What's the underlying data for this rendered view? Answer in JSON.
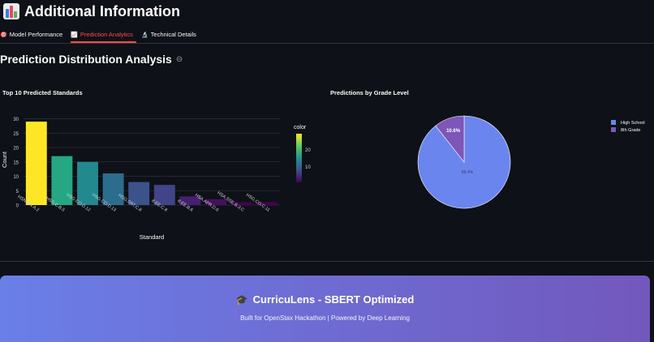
{
  "header": {
    "title": "Additional Information",
    "icon": "bar-chart-emoji-icon"
  },
  "tabs": [
    {
      "label": "Model Performance",
      "icon": "dart-icon",
      "glyph": "🎯",
      "active": false
    },
    {
      "label": "Prediction Analytics",
      "icon": "chart-icon",
      "glyph": "📈",
      "active": true
    },
    {
      "label": "Technical Details",
      "icon": "microscope-icon",
      "glyph": "🔬",
      "active": false
    }
  ],
  "section": {
    "title": "Prediction Distribution Analysis"
  },
  "bar_chart_title": "Top 10 Predicted Standards",
  "pie_chart_title": "Predictions by Grade Level",
  "chart_data": [
    {
      "type": "bar",
      "title": "Top 10 Predicted Standards",
      "xlabel": "Standard",
      "ylabel": "Count",
      "categories": [
        "HSN.RN.A.2",
        "HSG.C.B.5",
        "HSG.CO.D.12",
        "HSG.CO.D.13",
        "HSG.SRT.C.8",
        "8.EE.C.8",
        "8.EE.B.6",
        "HSA.APR.D.6",
        "HSA.SSE.B.3.C",
        "HSG.CO.C.11"
      ],
      "values": [
        29,
        17,
        15,
        11,
        8,
        7,
        3,
        2,
        1,
        1
      ],
      "ylim": [
        0,
        31
      ],
      "yticks": [
        0,
        5,
        10,
        15,
        20,
        25,
        30
      ],
      "grid": true,
      "colorbar": {
        "title": "color",
        "ticks": [
          10,
          20
        ],
        "range": [
          1,
          29
        ]
      },
      "bar_colors": [
        "#fde725",
        "#26a784",
        "#22898e",
        "#2c6d8e",
        "#3b528b",
        "#414487",
        "#481f70",
        "#470e60",
        "#440154",
        "#440154"
      ]
    },
    {
      "type": "pie",
      "title": "Predictions by Grade Level",
      "labels": [
        "High School",
        "8th Grade"
      ],
      "values": [
        89.4,
        10.6
      ],
      "value_labels": [
        "89.4%",
        "10.6%"
      ],
      "colors": [
        "#6b85ef",
        "#7d56b8"
      ],
      "legend": "top-right"
    }
  ],
  "footer": {
    "title": "CurricuLens - SBERT Optimized",
    "subtitle": "Built for OpenStax Hackathon | Powered by Deep Learning",
    "icon": "graduation-cap-icon"
  }
}
